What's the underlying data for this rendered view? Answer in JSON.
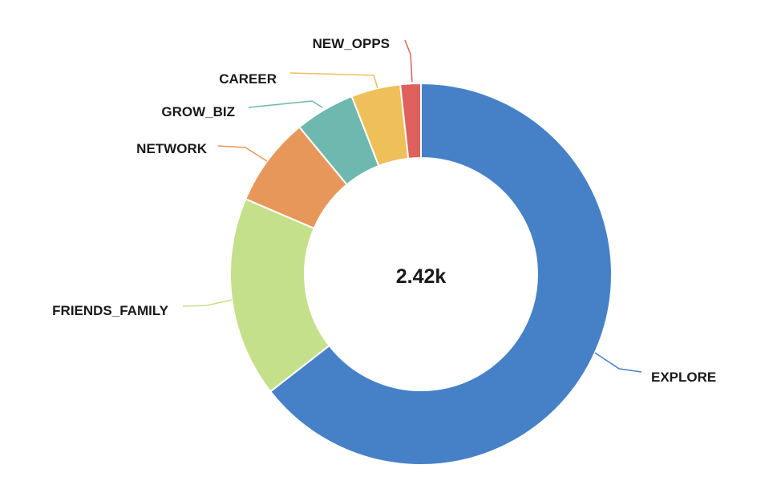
{
  "chart_data": {
    "type": "pie",
    "variant": "donut",
    "center_label": "2.42k",
    "categories": [
      "EXPLORE",
      "FRIENDS_FAMILY",
      "NETWORK",
      "GROW_BIZ",
      "CAREER",
      "NEW_OPPS"
    ],
    "values": [
      1560,
      411,
      183,
      123,
      101,
      42
    ],
    "colors": [
      "#4681c7",
      "#c5e08a",
      "#e8975a",
      "#6fb8b0",
      "#efbf5a",
      "#e0605e"
    ],
    "legend": "none (labels attached to slices with leader lines)"
  }
}
